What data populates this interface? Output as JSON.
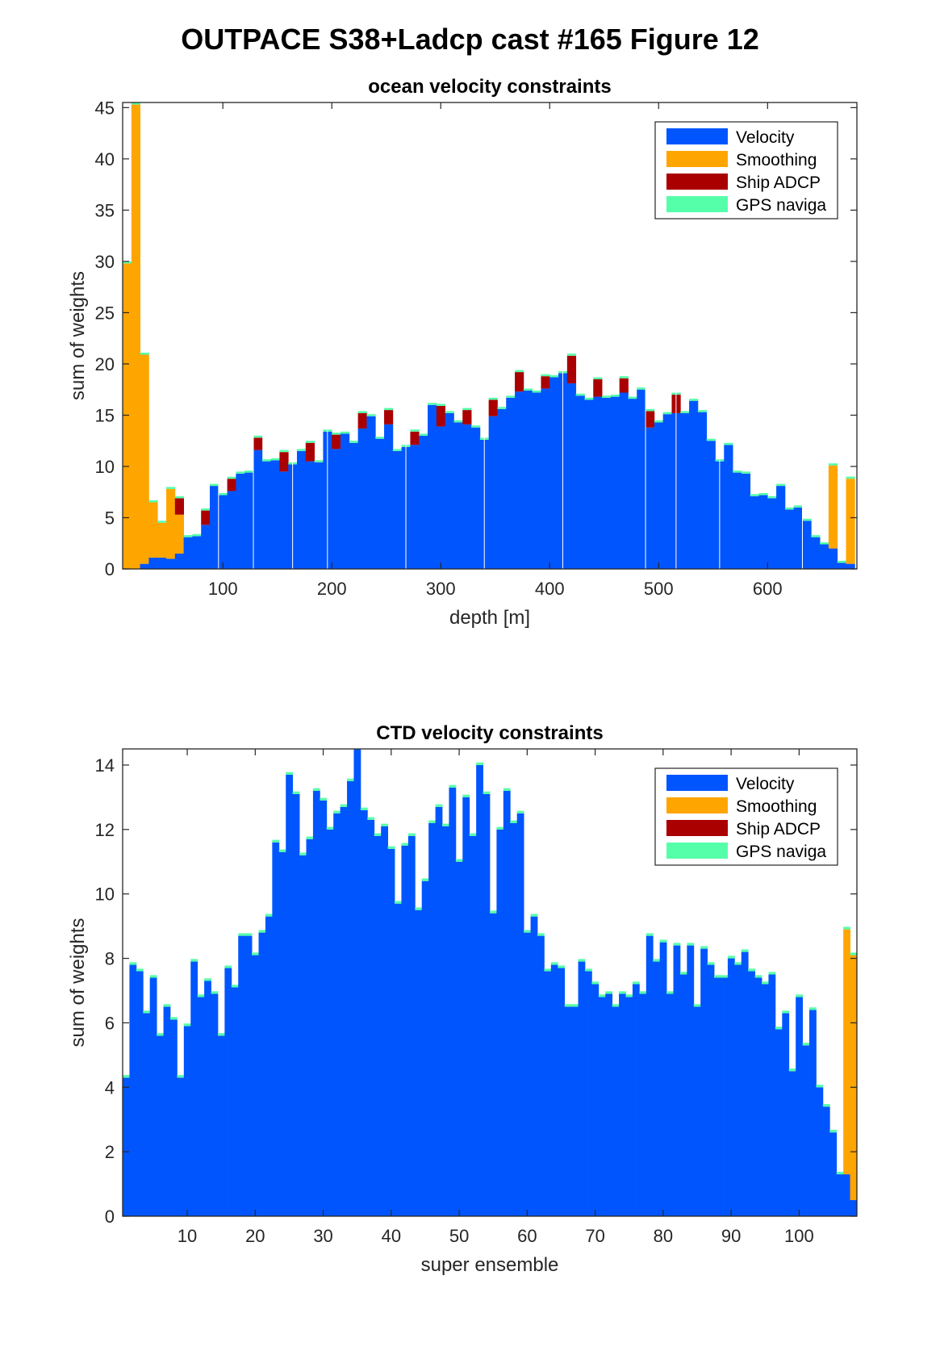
{
  "figure": {
    "title": "OUTPACE S38+Ladcp cast #165  Figure 12"
  },
  "colors": {
    "velocity": "#0055ff",
    "smoothing": "#ffa500",
    "ship_adcp": "#aa0000",
    "gps": "#55ffaa",
    "axes": "#262626"
  },
  "chart_data": [
    {
      "type": "bar",
      "stacked": true,
      "title": "ocean velocity constraints",
      "xlabel": "depth [m]",
      "ylabel": "sum of weights",
      "xlim": [
        8,
        682
      ],
      "ylim": [
        0,
        45.5
      ],
      "xticks": [
        100,
        200,
        300,
        400,
        500,
        600
      ],
      "yticks": [
        0,
        5,
        10,
        15,
        20,
        25,
        30,
        35,
        40,
        45
      ],
      "bin_width": 8,
      "legend_position": "top-right",
      "grid": false,
      "x": [
        12,
        20,
        28,
        36,
        44,
        52,
        60,
        68,
        76,
        84,
        92,
        100,
        108,
        116,
        124,
        132,
        140,
        148,
        156,
        164,
        172,
        180,
        188,
        196,
        204,
        212,
        220,
        228,
        236,
        244,
        252,
        260,
        268,
        276,
        284,
        292,
        300,
        308,
        316,
        324,
        332,
        340,
        348,
        356,
        364,
        372,
        380,
        388,
        396,
        404,
        412,
        420,
        428,
        436,
        444,
        452,
        460,
        468,
        476,
        484,
        492,
        500,
        508,
        516,
        524,
        532,
        540,
        548,
        556,
        564,
        572,
        580,
        588,
        596,
        604,
        612,
        620,
        628,
        636,
        644,
        652,
        660,
        668,
        676
      ],
      "series": [
        {
          "name": "Velocity",
          "values": [
            0,
            0,
            0.5,
            1.1,
            1.1,
            1,
            1.5,
            3.1,
            3.2,
            4.3,
            8.1,
            7.2,
            7.6,
            9.3,
            9.4,
            11.6,
            10.5,
            10.6,
            9.5,
            10.2,
            11.5,
            10.5,
            10.4,
            13.4,
            11.7,
            13.2,
            12.3,
            13.7,
            14.9,
            12.7,
            14.1,
            11.5,
            11.9,
            12.1,
            13,
            16,
            13.9,
            15.2,
            14.3,
            14.1,
            13.8,
            12.6,
            14.9,
            15.6,
            16.7,
            17.3,
            17.4,
            17.2,
            17.6,
            18.7,
            19.1,
            18.1,
            16.9,
            16.5,
            16.8,
            16.7,
            16.8,
            17.2,
            16.6,
            17.5,
            13.8,
            14.3,
            15.1,
            15.2,
            15.2,
            16.4,
            15.3,
            12.5,
            10.5,
            12.1,
            9.4,
            9.3,
            7.1,
            7.2,
            6.9,
            8.1,
            5.8,
            6,
            4.7,
            3.1,
            2.4,
            2,
            0.6,
            0.5
          ]
        },
        {
          "name": "Smoothing",
          "values": [
            29.8,
            45.3,
            20.4,
            5.4,
            3.4,
            6.8,
            3.8,
            0,
            0,
            0,
            0,
            0,
            0,
            0,
            0,
            0,
            0,
            0,
            0,
            0,
            0,
            0,
            0,
            0,
            0,
            0,
            0,
            0,
            0,
            0,
            0,
            0,
            0,
            0,
            0,
            0,
            0,
            0,
            0,
            0,
            0,
            0,
            0,
            0,
            0,
            0,
            0,
            0,
            0,
            0,
            0,
            0,
            0,
            0,
            0,
            0,
            0,
            0,
            0,
            0,
            0,
            0,
            0,
            0,
            0,
            0,
            0,
            0,
            0,
            0,
            0,
            0,
            0,
            0,
            0,
            0,
            0,
            0,
            0,
            0,
            0,
            8.1,
            0,
            8.3
          ]
        },
        {
          "name": "Ship ADCP",
          "values": [
            0,
            0,
            0,
            0,
            0,
            0,
            1.6,
            0,
            0,
            1.4,
            0,
            0,
            1.2,
            0,
            0,
            1.2,
            0,
            0,
            1.9,
            0,
            0,
            1.8,
            0,
            0,
            1.4,
            0,
            0,
            1.5,
            0,
            0,
            1.4,
            0,
            0,
            1.3,
            0,
            0,
            2,
            0,
            0,
            1.4,
            0,
            0,
            1.6,
            0,
            0,
            1.9,
            0,
            0,
            1.2,
            0,
            0,
            2.7,
            0,
            0,
            1.7,
            0,
            0,
            1.4,
            0,
            0,
            1.6,
            0,
            0,
            1.8,
            0,
            0,
            0,
            0,
            0,
            0,
            0,
            0,
            0,
            0,
            0,
            0,
            0,
            0,
            0,
            0,
            0,
            0,
            0,
            0
          ]
        },
        {
          "name": "GPS naviga",
          "values": [
            0.2,
            0.2,
            0.2,
            0.2,
            0.2,
            0.2,
            0.2,
            0.2,
            0.2,
            0.2,
            0.2,
            0.2,
            0.2,
            0.2,
            0.2,
            0.2,
            0.2,
            0.2,
            0.2,
            0.2,
            0.2,
            0.2,
            0.2,
            0.2,
            0.2,
            0.2,
            0.2,
            0.2,
            0.2,
            0.2,
            0.2,
            0.2,
            0.2,
            0.2,
            0.2,
            0.2,
            0.2,
            0.2,
            0.2,
            0.2,
            0.2,
            0.2,
            0.2,
            0.2,
            0.2,
            0.2,
            0.2,
            0.2,
            0.2,
            0.2,
            0.2,
            0.2,
            0.2,
            0.2,
            0.2,
            0.2,
            0.2,
            0.2,
            0.2,
            0.2,
            0.2,
            0.2,
            0.2,
            0.2,
            0.2,
            0.2,
            0.2,
            0.2,
            0.2,
            0.2,
            0.2,
            0.2,
            0.2,
            0.2,
            0.2,
            0.2,
            0.2,
            0.2,
            0.2,
            0.2,
            0.2,
            0.2,
            0.2,
            0.2
          ]
        }
      ],
      "separators_x": [
        96,
        128,
        164,
        196,
        268,
        340,
        412,
        488,
        516,
        556,
        632
      ]
    },
    {
      "type": "bar",
      "stacked": true,
      "title": "CTD velocity constraints",
      "xlabel": "super ensemble",
      "ylabel": "sum of weights",
      "xlim": [
        0.5,
        108.5
      ],
      "ylim": [
        0,
        14.5
      ],
      "xticks": [
        10,
        20,
        30,
        40,
        50,
        60,
        70,
        80,
        90,
        100
      ],
      "yticks": [
        0,
        2,
        4,
        6,
        8,
        10,
        12,
        14
      ],
      "bin_width": 1,
      "legend_position": "top-right",
      "grid": false,
      "x": [
        1,
        2,
        3,
        4,
        5,
        6,
        7,
        8,
        9,
        10,
        11,
        12,
        13,
        14,
        15,
        16,
        17,
        18,
        19,
        20,
        21,
        22,
        23,
        24,
        25,
        26,
        27,
        28,
        29,
        30,
        31,
        32,
        33,
        34,
        35,
        36,
        37,
        38,
        39,
        40,
        41,
        42,
        43,
        44,
        45,
        46,
        47,
        48,
        49,
        50,
        51,
        52,
        53,
        54,
        55,
        56,
        57,
        58,
        59,
        60,
        61,
        62,
        63,
        64,
        65,
        66,
        67,
        68,
        69,
        70,
        71,
        72,
        73,
        74,
        75,
        76,
        77,
        78,
        79,
        80,
        81,
        82,
        83,
        84,
        85,
        86,
        87,
        88,
        89,
        90,
        91,
        92,
        93,
        94,
        95,
        96,
        97,
        98,
        99,
        100,
        101,
        102,
        103,
        104,
        105,
        106,
        107,
        108
      ],
      "series": [
        {
          "name": "Velocity",
          "values": [
            4.3,
            7.8,
            7.6,
            6.3,
            7.4,
            5.6,
            6.5,
            6.1,
            4.3,
            5.9,
            7.9,
            6.8,
            7.3,
            6.9,
            5.6,
            7.7,
            7.1,
            8.7,
            8.7,
            8.1,
            8.8,
            9.3,
            11.6,
            11.3,
            13.7,
            13.1,
            11.2,
            11.7,
            13.2,
            12.9,
            12,
            12.5,
            12.7,
            13.5,
            14.5,
            12.6,
            12.3,
            11.8,
            12.1,
            11.4,
            9.7,
            11.5,
            11.8,
            9.5,
            10.4,
            12.2,
            12.7,
            12.1,
            13.3,
            11,
            13,
            11.8,
            14,
            13.1,
            9.4,
            12,
            13.2,
            12.2,
            12.5,
            8.8,
            9.3,
            8.7,
            7.6,
            7.8,
            7.7,
            6.5,
            6.5,
            7.9,
            7.6,
            7.2,
            6.8,
            6.9,
            6.5,
            6.9,
            6.8,
            7.2,
            6.9,
            8.7,
            7.9,
            8.5,
            6.9,
            8.4,
            7.5,
            8.4,
            6.5,
            8.3,
            7.8,
            7.4,
            7.4,
            8,
            7.8,
            8.2,
            7.6,
            7.4,
            7.2,
            7.5,
            5.8,
            6.3,
            4.5,
            6.8,
            5.3,
            6.4,
            4,
            3.4,
            2.6,
            1.3,
            1.3,
            0.5
          ]
        },
        {
          "name": "Smoothing",
          "values": [
            0,
            0,
            0,
            0,
            0,
            0,
            0,
            0,
            0,
            0,
            0,
            0,
            0,
            0,
            0,
            0,
            0,
            0,
            0,
            0,
            0,
            0,
            0,
            0,
            0,
            0,
            0,
            0,
            0,
            0,
            0,
            0,
            0,
            0,
            0,
            0,
            0,
            0,
            0,
            0,
            0,
            0,
            0,
            0,
            0,
            0,
            0,
            0,
            0,
            0,
            0,
            0,
            0,
            0,
            0,
            0,
            0,
            0,
            0,
            0,
            0,
            0,
            0,
            0,
            0,
            0,
            0,
            0,
            0,
            0,
            0,
            0,
            0,
            0,
            0,
            0,
            0,
            0,
            0,
            0,
            0,
            0,
            0,
            0,
            0,
            0,
            0,
            0,
            0,
            0,
            0,
            0,
            0,
            0,
            0,
            0,
            0,
            0,
            0,
            0,
            0,
            0,
            0,
            0,
            0,
            0,
            7.6,
            7.6
          ]
        },
        {
          "name": "Ship ADCP",
          "values": [
            0,
            0,
            0,
            0,
            0,
            0,
            0,
            0,
            0,
            0,
            0,
            0,
            0,
            0,
            0,
            0,
            0,
            0,
            0,
            0,
            0,
            0,
            0,
            0,
            0,
            0,
            0,
            0,
            0,
            0,
            0,
            0,
            0,
            0,
            0,
            0,
            0,
            0,
            0,
            0,
            0,
            0,
            0,
            0,
            0,
            0,
            0,
            0,
            0,
            0,
            0,
            0,
            0,
            0,
            0,
            0,
            0,
            0,
            0,
            0,
            0,
            0,
            0,
            0,
            0,
            0,
            0,
            0,
            0,
            0,
            0,
            0,
            0,
            0,
            0,
            0,
            0,
            0,
            0,
            0,
            0,
            0,
            0,
            0,
            0,
            0,
            0,
            0,
            0,
            0,
            0,
            0,
            0,
            0,
            0,
            0,
            0,
            0,
            0,
            0,
            0,
            0,
            0,
            0,
            0,
            0,
            0,
            0
          ]
        },
        {
          "name": "GPS naviga",
          "values": [
            0.08,
            0.08,
            0.08,
            0.08,
            0.08,
            0.08,
            0.08,
            0.08,
            0.08,
            0.08,
            0.08,
            0.08,
            0.08,
            0.08,
            0.08,
            0.08,
            0.08,
            0.08,
            0.08,
            0.08,
            0.08,
            0.08,
            0.08,
            0.08,
            0.08,
            0.08,
            0.08,
            0.08,
            0.08,
            0.08,
            0.08,
            0.08,
            0.08,
            0.08,
            0.08,
            0.08,
            0.08,
            0.08,
            0.08,
            0.08,
            0.08,
            0.08,
            0.08,
            0.08,
            0.08,
            0.08,
            0.08,
            0.08,
            0.08,
            0.08,
            0.08,
            0.08,
            0.08,
            0.08,
            0.08,
            0.08,
            0.08,
            0.08,
            0.08,
            0.08,
            0.08,
            0.08,
            0.08,
            0.08,
            0.08,
            0.08,
            0.08,
            0.08,
            0.08,
            0.08,
            0.08,
            0.08,
            0.08,
            0.08,
            0.08,
            0.08,
            0.08,
            0.08,
            0.08,
            0.08,
            0.08,
            0.08,
            0.08,
            0.08,
            0.08,
            0.08,
            0.08,
            0.08,
            0.08,
            0.08,
            0.08,
            0.08,
            0.08,
            0.08,
            0.08,
            0.08,
            0.08,
            0.08,
            0.08,
            0.08,
            0.08,
            0.08,
            0.08,
            0.08,
            0.08,
            0.08,
            0.08,
            0.08
          ]
        }
      ]
    }
  ]
}
